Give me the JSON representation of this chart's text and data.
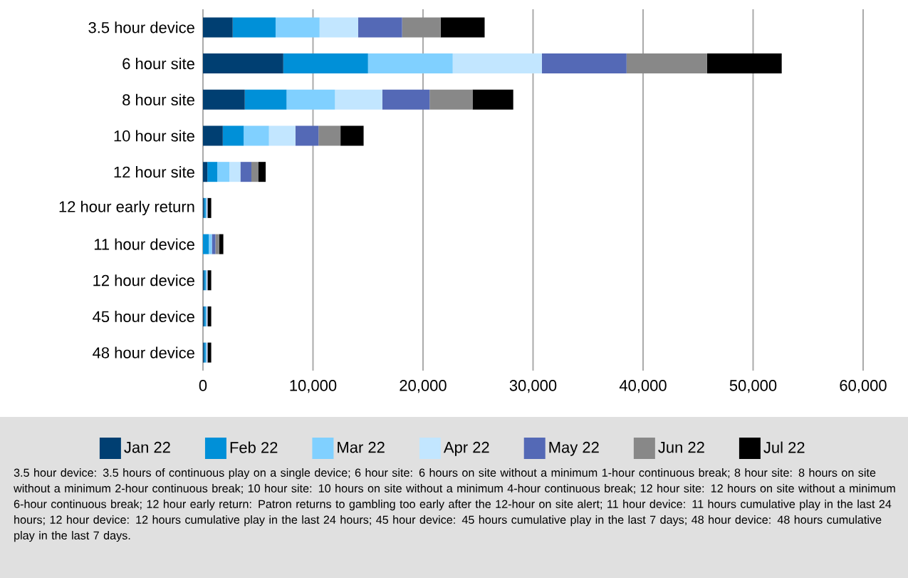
{
  "chart_data": {
    "type": "bar",
    "orientation": "horizontal",
    "stacked": true,
    "categories": [
      "3.5 hour device",
      "6 hour site",
      "8 hour site",
      "10 hour site",
      "12 hour site",
      "12 hour early return",
      "11 hour device",
      "12 hour device",
      "45 hour device",
      "48 hour device"
    ],
    "series": [
      {
        "name": "Jan 22",
        "color": "#003f72",
        "values": [
          2700,
          7300,
          3800,
          1800,
          400,
          100,
          null,
          100,
          100,
          100
        ]
      },
      {
        "name": "Feb 22",
        "color": "#0090d8",
        "values": [
          3900,
          7700,
          3800,
          1900,
          900,
          150,
          530,
          150,
          150,
          150
        ]
      },
      {
        "name": "Mar 22",
        "color": "#80d0ff",
        "values": [
          4000,
          7700,
          4400,
          2300,
          1100,
          50,
          280,
          50,
          50,
          50
        ]
      },
      {
        "name": "Apr 22",
        "color": "#c2e6ff",
        "values": [
          3500,
          8100,
          4300,
          2400,
          1000,
          50,
          null,
          50,
          50,
          50
        ]
      },
      {
        "name": "May 22",
        "color": "#5469b6",
        "values": [
          4000,
          7700,
          4300,
          2100,
          1000,
          50,
          320,
          50,
          50,
          50
        ]
      },
      {
        "name": "Jun 22",
        "color": "#888888",
        "values": [
          3500,
          7300,
          3900,
          2000,
          650,
          50,
          350,
          50,
          50,
          50
        ]
      },
      {
        "name": "Jul 22",
        "color": "#000000",
        "values": [
          4000,
          6800,
          3700,
          2100,
          650,
          300,
          370,
          300,
          300,
          300
        ]
      }
    ],
    "xlim": [
      0,
      60000
    ],
    "xticks": [
      0,
      {
        "value": 10000,
        "label": "10,000"
      },
      {
        "value": 20000,
        "label": "20,000"
      },
      {
        "value": 30000,
        "label": "30,000"
      },
      {
        "value": 40000,
        "label": "40,000"
      },
      {
        "value": 50000,
        "label": "50,000"
      },
      {
        "value": 60000,
        "label": "60,000"
      }
    ],
    "grid": "x",
    "legend": "bottom",
    "annotations": [
      "3.5 hour device: 3.5 hours of continuous play on a single device; 6 hour site: 6 hours on site without a minimum 1-hour continuous break; 8 hour site: 8 hours on site without a minimum 2-hour continuous break; 10 hour site: 10 hours on site without a minimum 4-hour continuous break; 12 hour site: 12 hours on site without a minimum 6-hour continuous break; 12 hour early return: Patron returns to gambling too early after the 12-hour on site alert; 11 hour device: 11 hours cumulative play in the last 24 hours; 12 hour device: 12 hours cumulative play in the last 24 hours; 45 hour device: 45 hours cumulative play in the last 7 days; 48 hour device: 48 hours cumulative play in the last 7 days."
    ]
  }
}
